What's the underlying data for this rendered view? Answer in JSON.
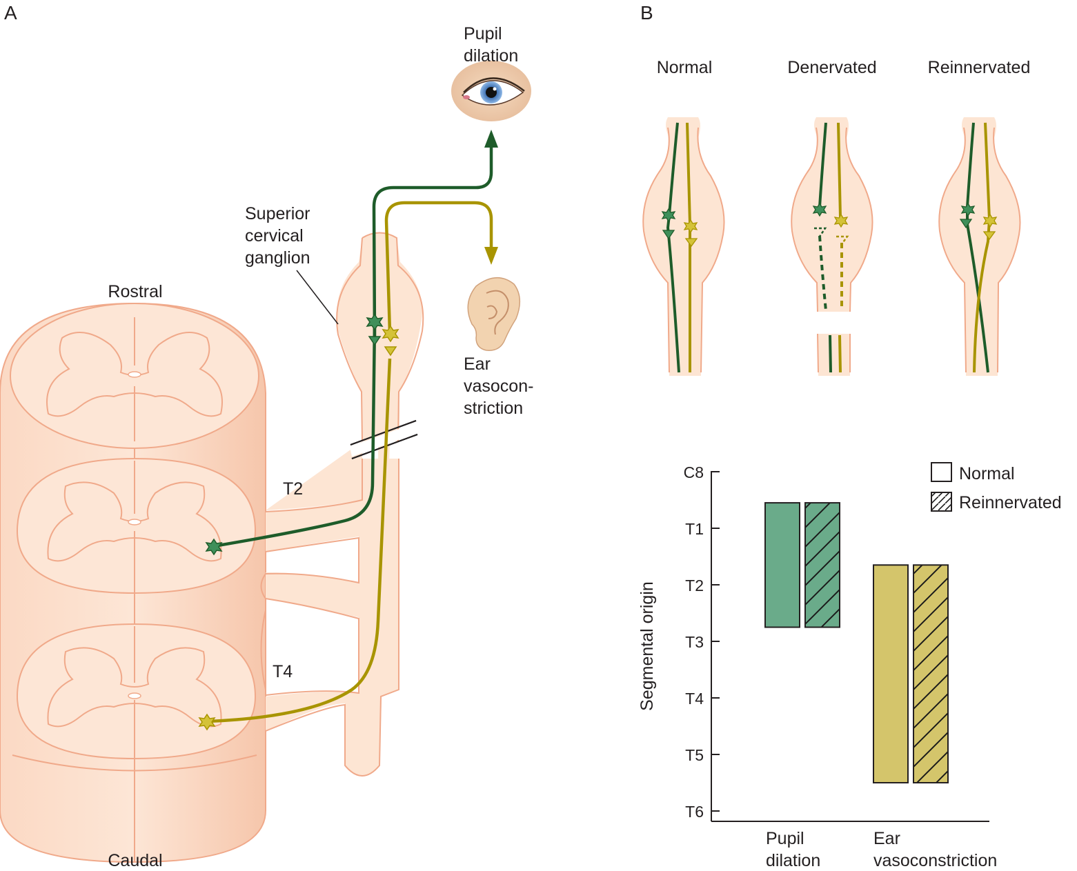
{
  "panel_a": {
    "letter": "A",
    "rostral": "Rostral",
    "caudal": "Caudal",
    "ganglion_lines": [
      "Superior",
      "cervical",
      "ganglion"
    ],
    "t2": "T2",
    "t4": "T4",
    "pupil_lines": [
      "Pupil",
      "dilation"
    ],
    "ear_lines": [
      "Ear",
      "vasocon-",
      "striction"
    ]
  },
  "panel_b": {
    "letter": "B",
    "conditions": [
      "Normal",
      "Denervated",
      "Reinnervated"
    ]
  },
  "colors": {
    "pupil_pathway": "#1e5c2a",
    "ear_pathway": "#a89400",
    "tissue_fill": "#fde5d3",
    "tissue_outline": "#f0a98a",
    "pupil_bar": "#6aab8a",
    "ear_bar": "#d4c56b"
  },
  "icons": [
    "eye-icon",
    "ear-icon",
    "neuron-star-icon",
    "synapse-terminal-icon"
  ],
  "chart_data": {
    "type": "bar",
    "subtype": "floating-range",
    "ylabel": "Segmental origin",
    "yticks": [
      "C8",
      "T1",
      "T2",
      "T3",
      "T4",
      "T5",
      "T6"
    ],
    "y_axis_direction": "downward",
    "categories": [
      [
        "Pupil",
        "dilation"
      ],
      [
        "Ear",
        "vasoconstriction"
      ]
    ],
    "legend": [
      {
        "label": "Normal",
        "pattern": "solid"
      },
      {
        "label": "Reinnervated",
        "pattern": "hatched"
      }
    ],
    "legend_position": "top-right",
    "series": [
      {
        "name": "Normal",
        "ranges": [
          [
            0.55,
            2.75
          ],
          [
            1.65,
            5.5
          ]
        ]
      },
      {
        "name": "Reinnervated",
        "ranges": [
          [
            0.55,
            2.75
          ],
          [
            1.65,
            5.5
          ]
        ]
      }
    ]
  }
}
